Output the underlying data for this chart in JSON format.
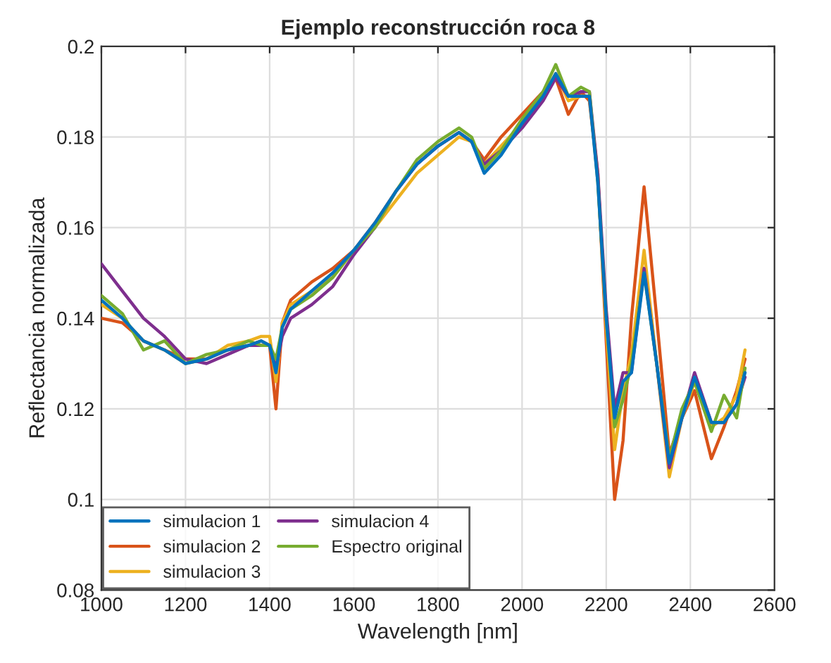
{
  "chart_data": {
    "type": "line",
    "title": "Ejemplo reconstrucción roca 8",
    "xlabel": "Wavelength [nm]",
    "ylabel": "Reflectancia normalizada",
    "x": [
      1000,
      1050,
      1100,
      1150,
      1200,
      1250,
      1300,
      1350,
      1380,
      1400,
      1415,
      1430,
      1450,
      1500,
      1550,
      1600,
      1650,
      1700,
      1750,
      1800,
      1850,
      1880,
      1910,
      1950,
      2000,
      2050,
      2080,
      2110,
      2140,
      2160,
      2180,
      2200,
      2220,
      2240,
      2260,
      2290,
      2320,
      2350,
      2380,
      2410,
      2450,
      2480,
      2510,
      2530
    ],
    "series": [
      {
        "name": "simulacion 1",
        "color": "#0072bd",
        "values": [
          0.144,
          0.14,
          0.135,
          0.133,
          0.13,
          0.131,
          0.133,
          0.134,
          0.135,
          0.134,
          0.128,
          0.138,
          0.142,
          0.146,
          0.15,
          0.155,
          0.161,
          0.168,
          0.174,
          0.178,
          0.181,
          0.179,
          0.172,
          0.176,
          0.183,
          0.189,
          0.194,
          0.189,
          0.189,
          0.189,
          0.17,
          0.14,
          0.118,
          0.126,
          0.128,
          0.15,
          0.13,
          0.108,
          0.118,
          0.127,
          0.117,
          0.117,
          0.121,
          0.128
        ]
      },
      {
        "name": "simulacion 2",
        "color": "#d95319",
        "values": [
          0.14,
          0.139,
          0.135,
          0.133,
          0.131,
          0.131,
          0.133,
          0.134,
          0.135,
          0.134,
          0.12,
          0.139,
          0.144,
          0.148,
          0.151,
          0.155,
          0.161,
          0.168,
          0.174,
          0.178,
          0.181,
          0.179,
          0.175,
          0.18,
          0.185,
          0.19,
          0.193,
          0.185,
          0.19,
          0.188,
          0.172,
          0.135,
          0.1,
          0.113,
          0.14,
          0.169,
          0.14,
          0.11,
          0.118,
          0.124,
          0.109,
          0.116,
          0.124,
          0.131
        ]
      },
      {
        "name": "simulacion 3",
        "color": "#edb120",
        "values": [
          0.143,
          0.14,
          0.135,
          0.133,
          0.13,
          0.131,
          0.134,
          0.135,
          0.136,
          0.136,
          0.126,
          0.139,
          0.143,
          0.146,
          0.149,
          0.155,
          0.16,
          0.166,
          0.172,
          0.176,
          0.18,
          0.179,
          0.174,
          0.178,
          0.183,
          0.189,
          0.194,
          0.188,
          0.189,
          0.189,
          0.171,
          0.138,
          0.111,
          0.124,
          0.132,
          0.155,
          0.13,
          0.105,
          0.118,
          0.126,
          0.116,
          0.118,
          0.123,
          0.133
        ]
      },
      {
        "name": "simulacion 4",
        "color": "#7e2f8e",
        "values": [
          0.152,
          0.146,
          0.14,
          0.136,
          0.131,
          0.13,
          0.132,
          0.134,
          0.134,
          0.134,
          0.129,
          0.136,
          0.14,
          0.143,
          0.147,
          0.154,
          0.16,
          0.168,
          0.174,
          0.178,
          0.181,
          0.179,
          0.174,
          0.177,
          0.182,
          0.188,
          0.193,
          0.189,
          0.19,
          0.19,
          0.172,
          0.142,
          0.12,
          0.128,
          0.128,
          0.151,
          0.13,
          0.107,
          0.118,
          0.128,
          0.117,
          0.117,
          0.121,
          0.127
        ]
      },
      {
        "name": "Espectro original",
        "color": "#77ac30",
        "values": [
          0.145,
          0.141,
          0.133,
          0.135,
          0.13,
          0.132,
          0.133,
          0.135,
          0.134,
          0.134,
          0.131,
          0.138,
          0.142,
          0.145,
          0.149,
          0.155,
          0.16,
          0.168,
          0.175,
          0.179,
          0.182,
          0.18,
          0.173,
          0.177,
          0.184,
          0.19,
          0.196,
          0.189,
          0.191,
          0.19,
          0.17,
          0.14,
          0.116,
          0.122,
          0.13,
          0.15,
          0.13,
          0.109,
          0.12,
          0.126,
          0.115,
          0.123,
          0.118,
          0.129
        ]
      }
    ],
    "xlim": [
      1000,
      2600
    ],
    "xticks": [
      1000,
      1200,
      1400,
      1600,
      1800,
      2000,
      2200,
      2400,
      2600
    ],
    "ylim": [
      0.08,
      0.2
    ],
    "yticks": [
      0.08,
      0.1,
      0.12,
      0.14,
      0.16,
      0.18,
      0.2
    ],
    "grid": true,
    "legend": "bottom left"
  }
}
